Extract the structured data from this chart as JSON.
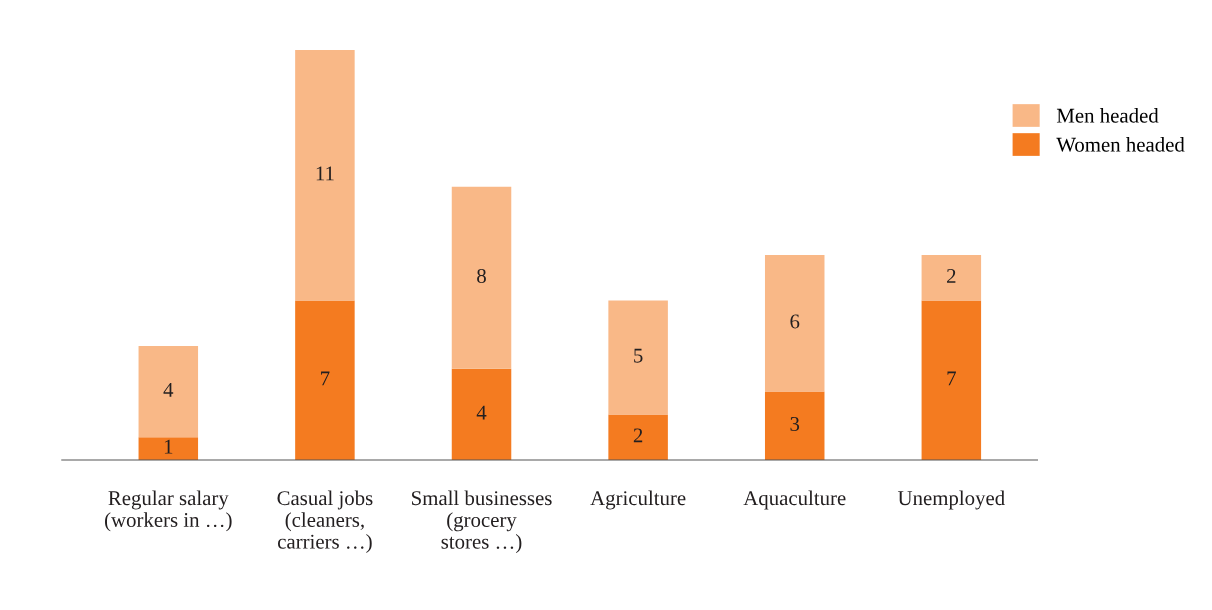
{
  "chart_data": {
    "type": "bar",
    "stacked": true,
    "data_labels": true,
    "legend": "top right",
    "grid": false,
    "categories": [
      "Regular salary\n(workers in …)",
      "Casual jobs\n(cleaners,\ncarriers …)",
      "Small businesses\n(grocery\nstores …)",
      "Agriculture",
      "Aquaculture",
      "Unemployed"
    ],
    "series": [
      {
        "name": "Women headed",
        "color": "#f47b20",
        "values": [
          1,
          7,
          4,
          2,
          3,
          7
        ]
      },
      {
        "name": "Men headed",
        "color": "#f9b887",
        "values": [
          4,
          11,
          8,
          5,
          6,
          2
        ]
      }
    ]
  }
}
